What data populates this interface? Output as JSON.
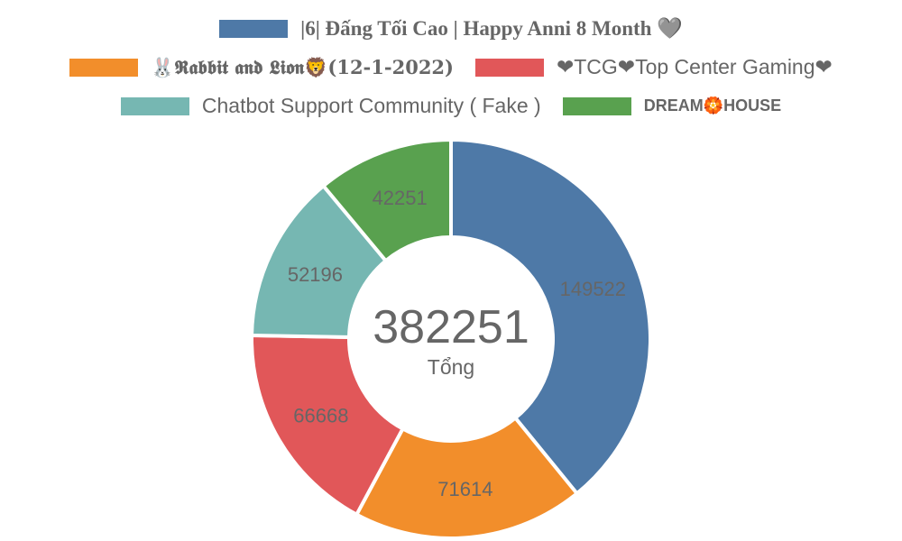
{
  "chart_data": {
    "type": "pie",
    "categories": [
      "|6| Đấng Tối Cao | Happy Anni 8 Month 🩶",
      "🐰𝕽𝖆𝖇𝖇𝖎𝖙 𝖆𝖓𝖉 𝕷𝖎𝖔𝖓🦁(12-1-2022)",
      "❤TCG❤Top Center Gaming❤",
      "Chatbot Support Community ( Fake )",
      "DREAM🏵️HOUSE"
    ],
    "values": [
      149522,
      71614,
      66668,
      52196,
      42251
    ],
    "colors": [
      "#4e79a7",
      "#f28e2b",
      "#e15759",
      "#76b7b2",
      "#59a14f"
    ],
    "center_total": "382251",
    "center_caption": "Tổng",
    "legend_position": "top"
  }
}
